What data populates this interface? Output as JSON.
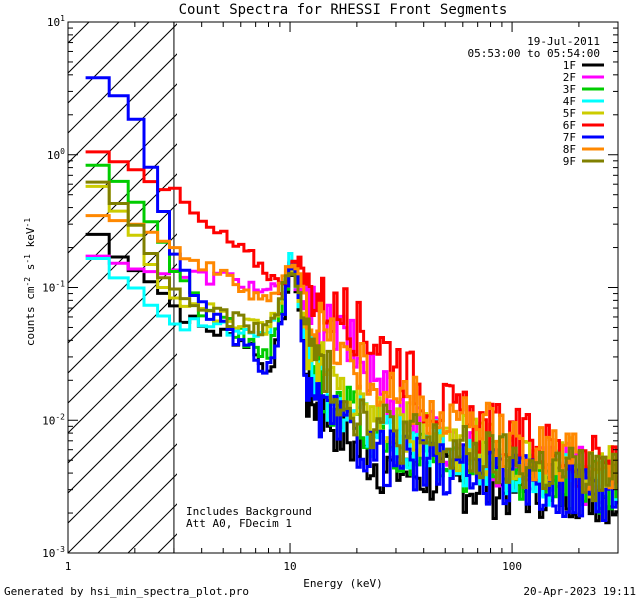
{
  "chart_data": {
    "type": "line",
    "title": "Count Spectra for RHESSI Front Segments",
    "xlabel": "Energy (keV)",
    "ylabel": "counts cm^-2 s^-1 keV^-1",
    "xscale": "log",
    "yscale": "log",
    "xlim": [
      1,
      300
    ],
    "ylim": [
      0.001,
      10
    ],
    "x_ticks": [
      {
        "value": 1,
        "label": "1"
      },
      {
        "value": 10,
        "label": "10"
      },
      {
        "value": 100,
        "label": "100"
      }
    ],
    "y_ticks": [
      {
        "value": 10,
        "base": "10",
        "exp": "1"
      },
      {
        "value": 1,
        "base": "10",
        "exp": "0"
      },
      {
        "value": 0.1,
        "base": "10",
        "exp": "-1"
      },
      {
        "value": 0.01,
        "base": "10",
        "exp": "-2"
      },
      {
        "value": 0.001,
        "base": "10",
        "exp": "-3"
      }
    ],
    "date": "19-Jul-2011",
    "time_range": "05:53:00 to 05:54:00",
    "annotation_lines": [
      "Includes Background",
      "Att A0, FDecim 1"
    ],
    "shaded_region": {
      "x_from": 1,
      "x_to": 3
    },
    "series": [
      {
        "name": "1F",
        "color": "#000000",
        "low": [
          [
            1.2,
            0.3
          ],
          [
            1.4,
            0.24
          ],
          [
            1.6,
            0.18
          ],
          [
            2.0,
            0.14
          ],
          [
            2.4,
            0.11
          ],
          [
            2.8,
            0.085
          ],
          [
            3.2,
            0.065
          ],
          [
            4,
            0.05
          ],
          [
            5,
            0.045
          ],
          [
            6,
            0.04
          ],
          [
            7,
            0.035
          ],
          [
            7.6,
            0.022
          ],
          [
            8.5,
            0.03
          ],
          [
            9.3,
            0.06
          ],
          [
            10.2,
            0.16
          ],
          [
            11,
            0.07
          ],
          [
            12,
            0.015
          ],
          [
            14,
            0.012
          ],
          [
            17,
            0.008
          ],
          [
            20,
            0.006
          ],
          [
            26,
            0.0045
          ],
          [
            35,
            0.004
          ],
          [
            50,
            0.0035
          ],
          [
            80,
            0.003
          ],
          [
            120,
            0.003
          ],
          [
            200,
            0.003
          ],
          [
            300,
            0.0025
          ]
        ]
      },
      {
        "name": "2F",
        "color": "#ff00ff",
        "low": [
          [
            1.2,
            0.17
          ],
          [
            1.5,
            0.17
          ],
          [
            2,
            0.14
          ],
          [
            2.5,
            0.13
          ],
          [
            3,
            0.125
          ],
          [
            4,
            0.12
          ],
          [
            5,
            0.12
          ],
          [
            6,
            0.11
          ],
          [
            7,
            0.1
          ],
          [
            8,
            0.09
          ],
          [
            9,
            0.1
          ],
          [
            10,
            0.14
          ],
          [
            11,
            0.1
          ],
          [
            12,
            0.07
          ],
          [
            14,
            0.05
          ],
          [
            16,
            0.045
          ],
          [
            18,
            0.04
          ],
          [
            20,
            0.03
          ],
          [
            25,
            0.02
          ],
          [
            30,
            0.012
          ],
          [
            40,
            0.008
          ],
          [
            60,
            0.006
          ],
          [
            100,
            0.0045
          ],
          [
            200,
            0.004
          ],
          [
            300,
            0.003
          ]
        ]
      },
      {
        "name": "3F",
        "color": "#00cc00",
        "low": [
          [
            1.2,
            0.9
          ],
          [
            1.6,
            0.7
          ],
          [
            2,
            0.45
          ],
          [
            2.4,
            0.3
          ],
          [
            2.8,
            0.2
          ],
          [
            3.2,
            0.12
          ],
          [
            4,
            0.07
          ],
          [
            5,
            0.055
          ],
          [
            6,
            0.045
          ],
          [
            7,
            0.035
          ],
          [
            8,
            0.03
          ],
          [
            9,
            0.06
          ],
          [
            10.3,
            0.16
          ],
          [
            11.2,
            0.07
          ],
          [
            12,
            0.03
          ],
          [
            15,
            0.015
          ],
          [
            20,
            0.01
          ],
          [
            30,
            0.0065
          ],
          [
            50,
            0.005
          ],
          [
            80,
            0.0045
          ],
          [
            120,
            0.004
          ],
          [
            200,
            0.0035
          ],
          [
            300,
            0.003
          ]
        ]
      },
      {
        "name": "4F",
        "color": "#00ffff",
        "low": [
          [
            1.2,
            0.21
          ],
          [
            1.4,
            0.16
          ],
          [
            1.6,
            0.13
          ],
          [
            2,
            0.1
          ],
          [
            2.4,
            0.07
          ],
          [
            3,
            0.055
          ],
          [
            4,
            0.055
          ],
          [
            5,
            0.05
          ],
          [
            6,
            0.045
          ],
          [
            7,
            0.04
          ],
          [
            8,
            0.04
          ],
          [
            9,
            0.08
          ],
          [
            10.2,
            0.19
          ],
          [
            11,
            0.08
          ],
          [
            12,
            0.03
          ],
          [
            15,
            0.015
          ],
          [
            20,
            0.01
          ],
          [
            30,
            0.007
          ],
          [
            45,
            0.006
          ],
          [
            70,
            0.005
          ],
          [
            100,
            0.004
          ],
          [
            200,
            0.0035
          ],
          [
            300,
            0.003
          ]
        ]
      },
      {
        "name": "5F",
        "color": "#cccc00",
        "low": [
          [
            1.2,
            0.7
          ],
          [
            1.5,
            0.5
          ],
          [
            2,
            0.25
          ],
          [
            2.5,
            0.12
          ],
          [
            3,
            0.08
          ],
          [
            4,
            0.07
          ],
          [
            5,
            0.06
          ],
          [
            6,
            0.055
          ],
          [
            7,
            0.05
          ],
          [
            8,
            0.05
          ],
          [
            9,
            0.08
          ],
          [
            10.3,
            0.15
          ],
          [
            11,
            0.09
          ],
          [
            12,
            0.04
          ],
          [
            15,
            0.02
          ],
          [
            20,
            0.013
          ],
          [
            30,
            0.009
          ],
          [
            50,
            0.007
          ],
          [
            80,
            0.006
          ],
          [
            120,
            0.005
          ],
          [
            200,
            0.0045
          ],
          [
            300,
            0.004
          ]
        ]
      },
      {
        "name": "6F",
        "color": "#ff0000",
        "low": [
          [
            1.2,
            1.1
          ],
          [
            1.5,
            1.0
          ],
          [
            2,
            0.8
          ],
          [
            2.5,
            0.6
          ],
          [
            3,
            0.5
          ],
          [
            3.5,
            0.4
          ],
          [
            4,
            0.3
          ],
          [
            5,
            0.24
          ],
          [
            6,
            0.19
          ],
          [
            7,
            0.16
          ],
          [
            8,
            0.13
          ],
          [
            9,
            0.1
          ],
          [
            10,
            0.14
          ],
          [
            11,
            0.15
          ],
          [
            12,
            0.1
          ],
          [
            14,
            0.08
          ],
          [
            16,
            0.065
          ],
          [
            18,
            0.06
          ],
          [
            20,
            0.05
          ],
          [
            25,
            0.04
          ],
          [
            30,
            0.03
          ],
          [
            40,
            0.016
          ],
          [
            60,
            0.01
          ],
          [
            90,
            0.008
          ],
          [
            150,
            0.006
          ],
          [
            300,
            0.004
          ]
        ]
      },
      {
        "name": "7F",
        "color": "#0000ff",
        "low": [
          [
            1.2,
            4.0
          ],
          [
            1.5,
            3.5
          ],
          [
            2,
            2.0
          ],
          [
            2.5,
            0.6
          ],
          [
            3,
            0.2
          ],
          [
            3.5,
            0.1
          ],
          [
            4,
            0.07
          ],
          [
            5,
            0.05
          ],
          [
            6,
            0.04
          ],
          [
            7,
            0.03
          ],
          [
            7.5,
            0.022
          ],
          [
            8.5,
            0.03
          ],
          [
            9.5,
            0.07
          ],
          [
            10.2,
            0.17
          ],
          [
            11,
            0.08
          ],
          [
            12,
            0.015
          ],
          [
            14,
            0.011
          ],
          [
            18,
            0.008
          ],
          [
            25,
            0.0055
          ],
          [
            40,
            0.0045
          ],
          [
            60,
            0.004
          ],
          [
            100,
            0.0035
          ],
          [
            200,
            0.003
          ],
          [
            300,
            0.0028
          ]
        ]
      },
      {
        "name": "8F",
        "color": "#ff8800",
        "low": [
          [
            1.2,
            0.37
          ],
          [
            1.5,
            0.35
          ],
          [
            2,
            0.3
          ],
          [
            2.5,
            0.25
          ],
          [
            3,
            0.2
          ],
          [
            3.5,
            0.17
          ],
          [
            4,
            0.15
          ],
          [
            5,
            0.12
          ],
          [
            6,
            0.1
          ],
          [
            7,
            0.09
          ],
          [
            8,
            0.085
          ],
          [
            9,
            0.1
          ],
          [
            10.3,
            0.16
          ],
          [
            11,
            0.12
          ],
          [
            12,
            0.07
          ],
          [
            14,
            0.05
          ],
          [
            17,
            0.035
          ],
          [
            20,
            0.025
          ],
          [
            30,
            0.015
          ],
          [
            50,
            0.01
          ],
          [
            80,
            0.008
          ],
          [
            120,
            0.006
          ],
          [
            200,
            0.005
          ],
          [
            300,
            0.0045
          ]
        ]
      },
      {
        "name": "9F",
        "color": "#808000",
        "low": [
          [
            1.2,
            0.75
          ],
          [
            1.5,
            0.55
          ],
          [
            2,
            0.3
          ],
          [
            2.5,
            0.15
          ],
          [
            3,
            0.09
          ],
          [
            4,
            0.07
          ],
          [
            5,
            0.06
          ],
          [
            6,
            0.055
          ],
          [
            7,
            0.05
          ],
          [
            8,
            0.05
          ],
          [
            9,
            0.08
          ],
          [
            10.3,
            0.15
          ],
          [
            11,
            0.09
          ],
          [
            12,
            0.04
          ],
          [
            15,
            0.02
          ],
          [
            20,
            0.012
          ],
          [
            30,
            0.008
          ],
          [
            50,
            0.006
          ],
          [
            80,
            0.005
          ],
          [
            120,
            0.0045
          ],
          [
            200,
            0.004
          ],
          [
            300,
            0.0035
          ]
        ]
      }
    ]
  },
  "footer": {
    "left": "Generated by hsi_min_spectra_plot.pro",
    "right": "20-Apr-2023 19:11"
  }
}
